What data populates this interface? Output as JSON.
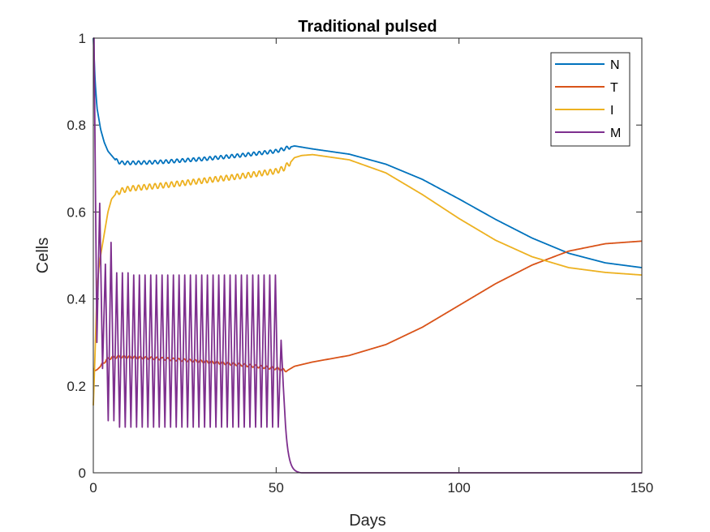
{
  "chart_data": {
    "type": "line",
    "title": "Traditional pulsed",
    "xlabel": "Days",
    "ylabel": "Cells",
    "xlim": [
      0,
      150
    ],
    "ylim": [
      0,
      1
    ],
    "xticks": [
      0,
      50,
      100,
      150
    ],
    "yticks": [
      0,
      0.2,
      0.4,
      0.6,
      0.8,
      1
    ],
    "ytick_labels": [
      "0",
      "0.2",
      "0.4",
      "0.6",
      "0.8",
      "1"
    ],
    "grid": false,
    "legend_position": "top-right",
    "series": [
      {
        "name": "N",
        "color": "#0072BD",
        "x": [
          0,
          0.5,
          1,
          2,
          3,
          4,
          5,
          6,
          7,
          8,
          10,
          15,
          20,
          30,
          40,
          45,
          50,
          52,
          55,
          60,
          70,
          80,
          90,
          100,
          110,
          120,
          130,
          140,
          150
        ],
        "y": [
          1.0,
          0.9,
          0.84,
          0.79,
          0.76,
          0.74,
          0.73,
          0.72,
          0.715,
          0.713,
          0.713,
          0.714,
          0.716,
          0.722,
          0.73,
          0.735,
          0.74,
          0.745,
          0.752,
          0.745,
          0.733,
          0.71,
          0.675,
          0.63,
          0.583,
          0.54,
          0.505,
          0.483,
          0.472
        ],
        "oscillation": {
          "start": 6,
          "end": 54,
          "period": 1.5,
          "amplitude": 0.004
        }
      },
      {
        "name": "T",
        "color": "#D95319",
        "x": [
          0,
          0.5,
          1,
          2,
          3,
          4,
          5,
          7,
          10,
          20,
          30,
          40,
          50,
          53,
          55,
          60,
          70,
          80,
          90,
          100,
          110,
          120,
          130,
          140,
          150
        ],
        "y": [
          0.24,
          0.235,
          0.237,
          0.245,
          0.255,
          0.262,
          0.265,
          0.267,
          0.266,
          0.262,
          0.256,
          0.249,
          0.24,
          0.235,
          0.245,
          0.255,
          0.27,
          0.295,
          0.335,
          0.385,
          0.435,
          0.478,
          0.51,
          0.527,
          0.533
        ],
        "oscillation": {
          "start": 2,
          "end": 53,
          "period": 1.5,
          "amplitude": 0.003
        }
      },
      {
        "name": "I",
        "color": "#EDB120",
        "x": [
          0,
          0.5,
          1,
          1.5,
          2,
          3,
          4,
          5,
          6,
          7,
          8,
          10,
          20,
          30,
          40,
          45,
          50,
          52,
          54,
          55,
          57,
          60,
          70,
          80,
          90,
          100,
          110,
          120,
          130,
          140,
          150
        ],
        "y": [
          0.155,
          0.28,
          0.42,
          0.47,
          0.5,
          0.55,
          0.6,
          0.63,
          0.64,
          0.646,
          0.65,
          0.654,
          0.662,
          0.672,
          0.682,
          0.688,
          0.694,
          0.7,
          0.715,
          0.725,
          0.73,
          0.732,
          0.72,
          0.69,
          0.64,
          0.585,
          0.535,
          0.497,
          0.472,
          0.461,
          0.455
        ],
        "oscillation": {
          "start": 6,
          "end": 54,
          "period": 1.5,
          "amplitude": 0.006
        }
      },
      {
        "name": "M",
        "color": "#7E2F8E",
        "pulsed": {
          "start": 0.2,
          "period": 1.55,
          "pulses": 33,
          "peaks": [
            1.0,
            0.62,
            0.48,
            0.53,
            0.46,
            0.46,
            0.46
          ],
          "troughs": [
            0.3,
            0.24,
            0.12,
            0.12,
            0.105
          ],
          "peak_default": 0.455,
          "trough_default": 0.105,
          "final_peak": 0.305,
          "decay_end": 57,
          "baseline_after": 0.0,
          "x_end": 150
        }
      }
    ]
  }
}
